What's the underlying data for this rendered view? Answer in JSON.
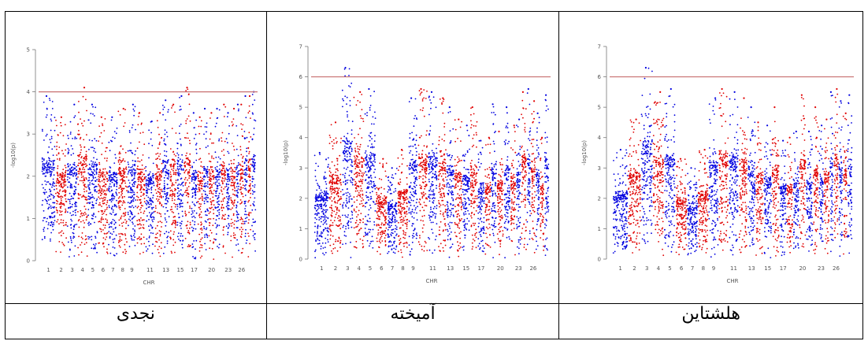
{
  "panels": [
    {
      "caption": "هلشتاین",
      "chart_data": {
        "type": "scatter",
        "title": "",
        "xlabel": "CHR",
        "ylabel": "-log10(p)",
        "ylim": [
          0,
          7
        ],
        "yticks": [
          0,
          1,
          2,
          3,
          4,
          5,
          6,
          7
        ],
        "xtick_labels": [
          "1",
          "2",
          "3",
          "4",
          "5",
          "6",
          "7",
          "8",
          "9",
          "11",
          "13",
          "15",
          "17",
          "20",
          "23",
          "26"
        ],
        "chromosomes": [
          1,
          2,
          3,
          4,
          5,
          6,
          7,
          8,
          9,
          10,
          11,
          12,
          13,
          14,
          15,
          16,
          17,
          18,
          19,
          20,
          21,
          22,
          23,
          24,
          25,
          26,
          27,
          28,
          29
        ],
        "chrom_peaks": [
          3.6,
          4.6,
          6.3,
          5.5,
          5.6,
          3.3,
          3.0,
          3.6,
          5.3,
          5.6,
          5.5,
          5.3,
          5.0,
          4.5,
          4.4,
          5.0,
          3.9,
          4.0,
          4.2,
          5.4,
          4.2,
          5.0,
          4.4,
          4.6,
          5.5,
          5.6,
          5.2,
          4.8,
          5.4
        ],
        "threshold": 6.0,
        "series": [
          {
            "values": []
          }
        ],
        "colors": {
          "odd": "#0000e0",
          "even": "#e00000",
          "threshold": "#c87070"
        },
        "grid": false
      }
    },
    {
      "caption": "آمیخته",
      "chart_data": {
        "type": "scatter",
        "title": "",
        "xlabel": "CHR",
        "ylabel": "-log10(p)",
        "ylim": [
          0,
          7
        ],
        "yticks": [
          0,
          1,
          2,
          3,
          4,
          5,
          6,
          7
        ],
        "xtick_labels": [
          "1",
          "2",
          "3",
          "4",
          "5",
          "6",
          "7",
          "8",
          "9",
          "11",
          "13",
          "15",
          "17",
          "20",
          "23",
          "26"
        ],
        "chromosomes": [
          1,
          2,
          3,
          4,
          5,
          6,
          7,
          8,
          9,
          10,
          11,
          12,
          13,
          14,
          15,
          16,
          17,
          18,
          19,
          20,
          21,
          22,
          23,
          24,
          25,
          26,
          27,
          28,
          29
        ],
        "chrom_peaks": [
          3.5,
          4.5,
          6.3,
          5.5,
          5.6,
          3.3,
          3.0,
          3.6,
          5.3,
          5.6,
          5.5,
          5.3,
          5.0,
          4.6,
          4.4,
          5.0,
          3.9,
          4.0,
          5.1,
          4.2,
          5.0,
          4.4,
          4.6,
          5.5,
          5.6,
          5.2,
          4.8,
          4.0,
          5.4
        ],
        "threshold": 6.0,
        "series": [
          {
            "values": []
          }
        ],
        "colors": {
          "odd": "#0000e0",
          "even": "#e00000",
          "threshold": "#c87070"
        },
        "grid": false
      }
    },
    {
      "caption": "نجدی",
      "chart_data": {
        "type": "scatter",
        "title": "",
        "xlabel": "CHR",
        "ylabel": "-log10(p)",
        "ylim": [
          0,
          5
        ],
        "yticks": [
          0,
          1,
          2,
          3,
          4,
          5
        ],
        "xtick_labels": [
          "1",
          "2",
          "3",
          "4",
          "5",
          "6",
          "7",
          "8",
          "9",
          "11",
          "13",
          "15",
          "17",
          "20",
          "23",
          "26"
        ],
        "chromosomes": [
          1,
          2,
          3,
          4,
          5,
          6,
          7,
          8,
          9,
          10,
          11,
          12,
          13,
          14,
          15,
          16,
          17,
          18,
          19,
          20,
          21,
          22,
          23,
          24,
          25,
          26,
          27,
          28,
          29
        ],
        "chrom_peaks": [
          3.9,
          3.4,
          3.7,
          4.1,
          3.7,
          3.4,
          3.4,
          3.6,
          3.7,
          3.5,
          3.3,
          3.5,
          3.8,
          3.7,
          3.9,
          4.1,
          3.5,
          3.4,
          3.6,
          3.5,
          3.6,
          3.7,
          3.5,
          3.6,
          3.7,
          3.7,
          3.9,
          3.9,
          4.0
        ],
        "threshold": 4.0,
        "series": [
          {
            "values": []
          }
        ],
        "colors": {
          "odd": "#0000e0",
          "even": "#e00000",
          "threshold": "#c87070"
        },
        "grid": false
      }
    }
  ]
}
